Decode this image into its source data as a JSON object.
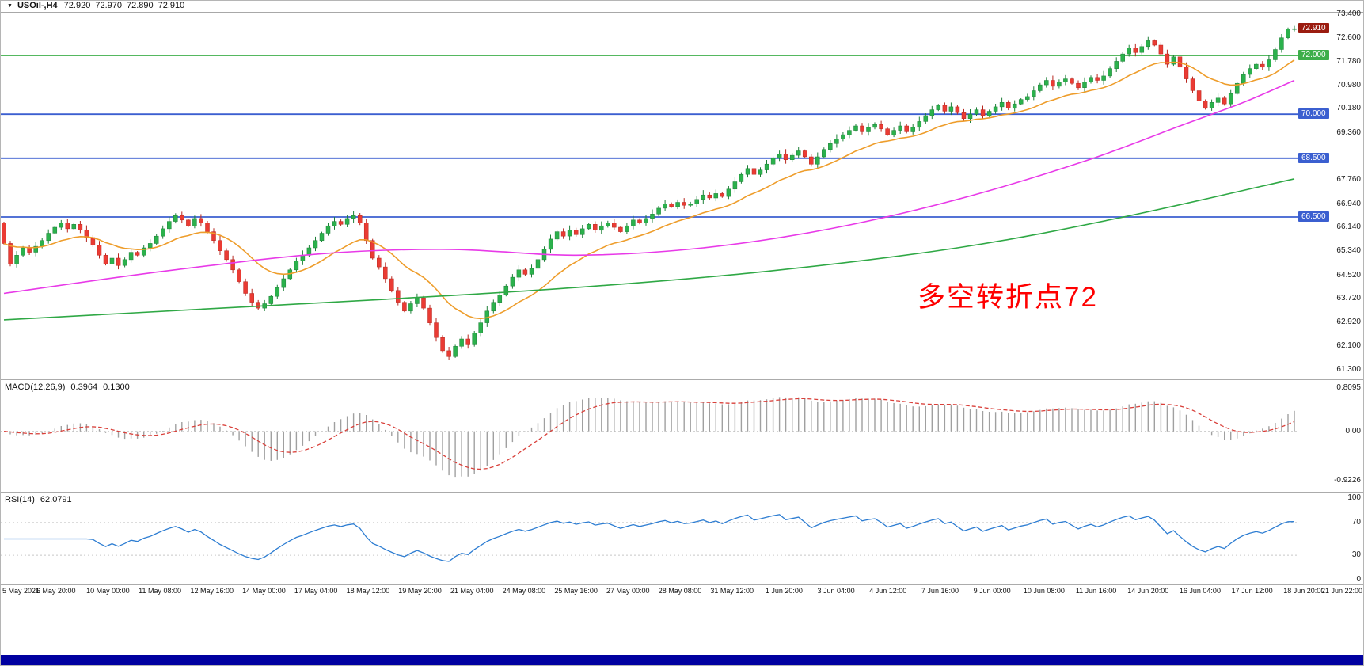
{
  "header": {
    "menu_icon": "▼",
    "symbol": "USOil-,H4",
    "open": "72.920",
    "high": "72.970",
    "low": "72.890",
    "close": "72.910"
  },
  "indicators": {
    "macd": {
      "label": "MACD(12,26,9)",
      "value_main": "0.3964",
      "value_signal": "0.1300",
      "scale_labels": [
        "0.8095",
        "0.00",
        "-0.9226"
      ]
    },
    "rsi": {
      "label": "RSI(14)",
      "value": "62.0791",
      "scale_labels": [
        "100",
        "70",
        "30",
        "0"
      ]
    }
  },
  "annotation": {
    "text": "多空转折点72",
    "color": "#FF0000"
  },
  "price_axis": {
    "ticks": [
      "73.400",
      "72.600",
      "71.780",
      "70.980",
      "70.180",
      "69.360",
      "67.760",
      "66.940",
      "66.140",
      "65.340",
      "64.520",
      "63.720",
      "62.920",
      "62.100",
      "61.300"
    ],
    "badges": [
      {
        "text": "72.910",
        "price": 72.91,
        "bg": "#9B1C10"
      },
      {
        "text": "72.000",
        "price": 72.0,
        "bg": "#3DAE49"
      },
      {
        "text": "70.000",
        "price": 70.0,
        "bg": "#3B5FD0"
      },
      {
        "text": "68.500",
        "price": 68.5,
        "bg": "#3B5FD0"
      },
      {
        "text": "66.500",
        "price": 66.5,
        "bg": "#3B5FD0"
      }
    ]
  },
  "chart_data": {
    "type": "candlestick",
    "symbol": "USOil-",
    "timeframe": "H4",
    "title": "USOil-,H4 72.920 72.970 72.890 72.910",
    "price_range": [
      61.3,
      73.4
    ],
    "first_open": 66.3,
    "closes": [
      65.6,
      64.9,
      65.2,
      65.45,
      65.3,
      65.5,
      65.7,
      65.95,
      66.15,
      66.3,
      66.1,
      66.25,
      66.05,
      65.8,
      65.55,
      65.2,
      64.9,
      65.1,
      64.85,
      65.05,
      65.3,
      65.2,
      65.45,
      65.6,
      65.85,
      66.1,
      66.35,
      66.55,
      66.4,
      66.2,
      66.45,
      66.3,
      66.0,
      65.7,
      65.35,
      65.05,
      64.7,
      64.3,
      63.9,
      63.6,
      63.4,
      63.55,
      63.8,
      64.1,
      64.4,
      64.7,
      65.0,
      65.2,
      65.45,
      65.7,
      65.95,
      66.2,
      66.35,
      66.25,
      66.45,
      66.55,
      66.3,
      65.7,
      65.1,
      64.8,
      64.4,
      64.0,
      63.6,
      63.3,
      63.55,
      63.75,
      63.4,
      62.9,
      62.4,
      61.95,
      61.75,
      62.1,
      62.35,
      62.15,
      62.55,
      62.9,
      63.3,
      63.6,
      63.85,
      64.15,
      64.45,
      64.7,
      64.55,
      64.75,
      65.05,
      65.4,
      65.75,
      66.0,
      65.85,
      66.05,
      65.9,
      66.1,
      66.25,
      66.05,
      66.2,
      66.3,
      66.15,
      66.0,
      66.2,
      66.4,
      66.3,
      66.45,
      66.6,
      66.8,
      66.95,
      66.85,
      67.0,
      66.9,
      66.95,
      67.1,
      67.25,
      67.15,
      67.3,
      67.2,
      67.45,
      67.7,
      67.95,
      68.15,
      67.95,
      68.1,
      68.3,
      68.5,
      68.65,
      68.45,
      68.6,
      68.75,
      68.55,
      68.3,
      68.55,
      68.8,
      69.0,
      69.15,
      69.3,
      69.45,
      69.6,
      69.4,
      69.55,
      69.65,
      69.5,
      69.3,
      69.45,
      69.6,
      69.4,
      69.55,
      69.75,
      69.95,
      70.15,
      70.3,
      70.1,
      70.25,
      70.05,
      69.85,
      70.0,
      70.15,
      69.95,
      70.1,
      70.25,
      70.4,
      70.2,
      70.35,
      70.5,
      70.6,
      70.8,
      71.0,
      71.15,
      70.95,
      71.1,
      71.2,
      71.05,
      70.9,
      71.1,
      71.25,
      71.15,
      71.3,
      71.55,
      71.8,
      72.05,
      72.25,
      72.1,
      72.3,
      72.5,
      72.35,
      72.05,
      71.7,
      71.95,
      71.6,
      71.2,
      70.8,
      70.45,
      70.2,
      70.4,
      70.55,
      70.35,
      70.7,
      71.05,
      71.35,
      71.55,
      71.7,
      71.6,
      71.85,
      72.2,
      72.6,
      72.9,
      72.91
    ],
    "x_tick_labels": [
      "5 May 2021",
      "6 May 20:00",
      "10 May 00:00",
      "11 May 08:00",
      "12 May 16:00",
      "14 May 00:00",
      "17 May 04:00",
      "18 May 12:00",
      "19 May 20:00",
      "21 May 04:00",
      "24 May 08:00",
      "25 May 16:00",
      "27 May 00:00",
      "28 May 08:00",
      "31 May 12:00",
      "1 Jun 20:00",
      "3 Jun 04:00",
      "4 Jun 12:00",
      "7 Jun 16:00",
      "9 Jun 00:00",
      "10 Jun 08:00",
      "11 Jun 16:00",
      "14 Jun 20:00",
      "16 Jun 04:00",
      "17 Jun 12:00",
      "18 Jun 20:00",
      "21 Jun 22:00"
    ],
    "colors": {
      "up": "#2BB14C",
      "up_border": "#1E8038",
      "down": "#EA3B34",
      "down_border": "#B7271F"
    },
    "hlines": [
      {
        "price": 72.0,
        "color": "#3DAE49"
      },
      {
        "price": 70.0,
        "color": "#3B5FD0"
      },
      {
        "price": 68.5,
        "color": "#3B5FD0"
      },
      {
        "price": 66.5,
        "color": "#3B5FD0"
      }
    ],
    "overlays": [
      {
        "name": "ma-fast-line",
        "color": "#EE9D2B",
        "type": "ema",
        "period": 16
      },
      {
        "name": "ma-mid-line",
        "color": "#E83AE8",
        "points": [
          [
            0,
            63.9
          ],
          [
            25,
            64.65
          ],
          [
            50,
            65.25
          ],
          [
            70,
            65.4
          ],
          [
            90,
            65.2
          ],
          [
            110,
            65.45
          ],
          [
            130,
            66.1
          ],
          [
            150,
            67.1
          ],
          [
            170,
            68.4
          ],
          [
            185,
            69.6
          ],
          [
            195,
            70.4
          ],
          [
            203,
            71.15
          ]
        ]
      },
      {
        "name": "ma-slow-line",
        "color": "#2FA845",
        "points": [
          [
            0,
            63.0
          ],
          [
            30,
            63.35
          ],
          [
            60,
            63.7
          ],
          [
            90,
            64.1
          ],
          [
            120,
            64.65
          ],
          [
            150,
            65.45
          ],
          [
            175,
            66.45
          ],
          [
            203,
            67.8
          ]
        ]
      }
    ],
    "macd": {
      "fast": 12,
      "slow": 26,
      "signal": 9,
      "scale_top": 0.8095,
      "scale_bottom": -0.9226,
      "hist_color": "#A0A0A0",
      "signal_color": "#D9403A"
    },
    "rsi": {
      "period": 14,
      "color": "#2D7DD2",
      "levels": [
        70,
        30
      ],
      "range": [
        0,
        100
      ]
    }
  }
}
